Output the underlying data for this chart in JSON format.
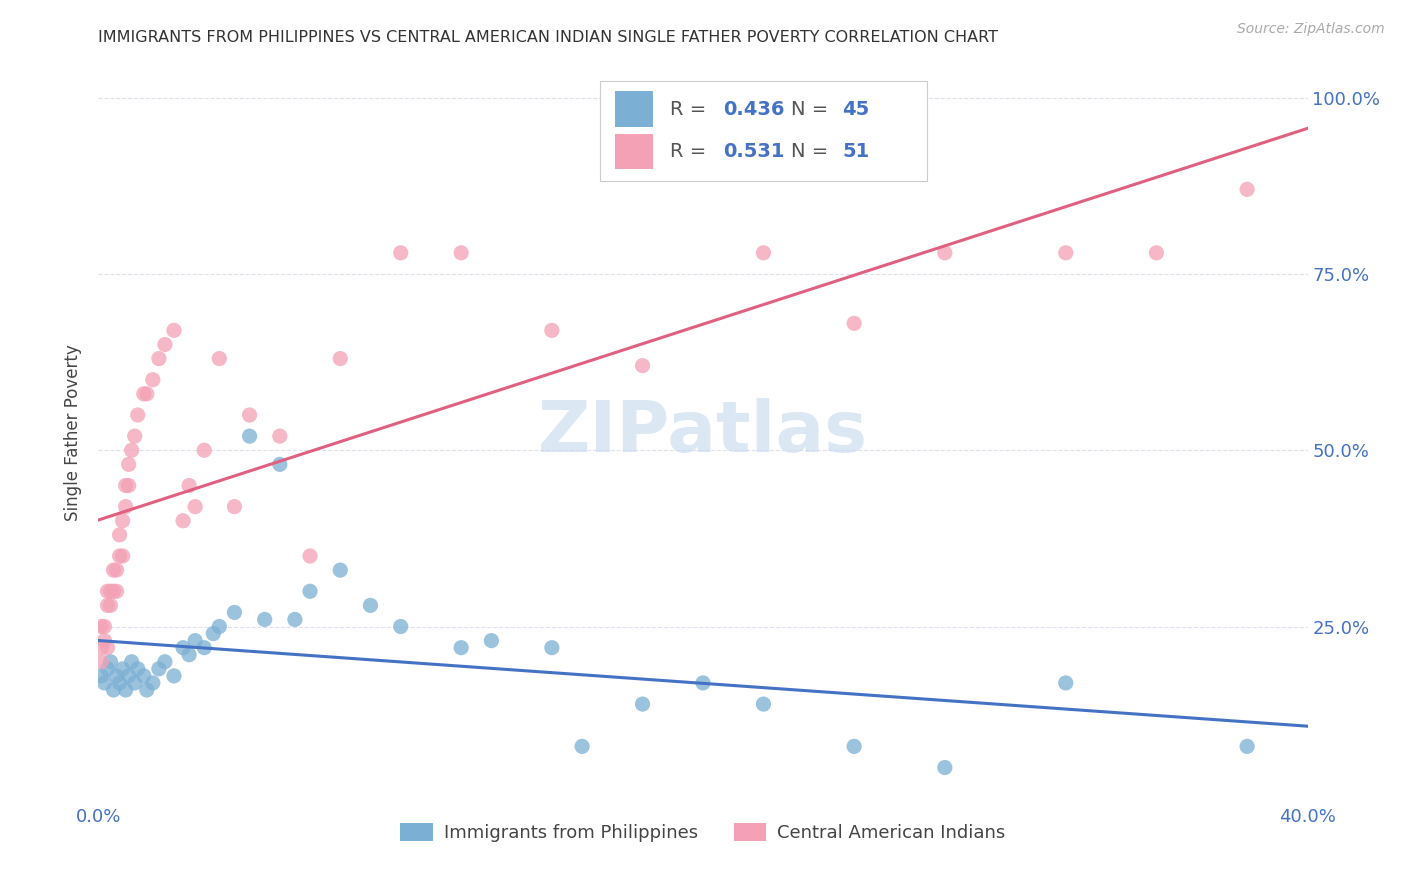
{
  "title": "IMMIGRANTS FROM PHILIPPINES VS CENTRAL AMERICAN INDIAN SINGLE FATHER POVERTY CORRELATION CHART",
  "source": "Source: ZipAtlas.com",
  "ylabel": "Single Father Poverty",
  "blue_R": 0.436,
  "blue_N": 45,
  "pink_R": 0.531,
  "pink_N": 51,
  "blue_color": "#7bafd4",
  "pink_color": "#f4a0b5",
  "blue_line_color": "#4472c4",
  "pink_line_color": "#e06080",
  "legend_label_blue": "Immigrants from Philippines",
  "legend_label_pink": "Central American Indians",
  "watermark": "ZIPatlas",
  "blue_scatter_x": [
    0.001,
    0.002,
    0.003,
    0.004,
    0.005,
    0.006,
    0.007,
    0.008,
    0.009,
    0.01,
    0.011,
    0.012,
    0.013,
    0.015,
    0.016,
    0.018,
    0.02,
    0.022,
    0.025,
    0.028,
    0.03,
    0.032,
    0.035,
    0.038,
    0.04,
    0.045,
    0.05,
    0.055,
    0.06,
    0.065,
    0.07,
    0.08,
    0.09,
    0.1,
    0.12,
    0.13,
    0.15,
    0.16,
    0.18,
    0.2,
    0.22,
    0.25,
    0.28,
    0.32,
    0.38
  ],
  "blue_scatter_y": [
    0.18,
    0.17,
    0.19,
    0.2,
    0.16,
    0.18,
    0.17,
    0.19,
    0.16,
    0.18,
    0.2,
    0.17,
    0.19,
    0.18,
    0.16,
    0.17,
    0.19,
    0.2,
    0.18,
    0.22,
    0.21,
    0.23,
    0.22,
    0.24,
    0.25,
    0.27,
    0.52,
    0.26,
    0.48,
    0.26,
    0.3,
    0.33,
    0.28,
    0.25,
    0.22,
    0.23,
    0.22,
    0.08,
    0.14,
    0.17,
    0.14,
    0.08,
    0.05,
    0.17,
    0.08
  ],
  "pink_scatter_x": [
    0.001,
    0.001,
    0.001,
    0.002,
    0.002,
    0.003,
    0.003,
    0.003,
    0.004,
    0.004,
    0.005,
    0.005,
    0.006,
    0.006,
    0.007,
    0.007,
    0.008,
    0.008,
    0.009,
    0.009,
    0.01,
    0.01,
    0.011,
    0.012,
    0.013,
    0.015,
    0.016,
    0.018,
    0.02,
    0.022,
    0.025,
    0.028,
    0.03,
    0.032,
    0.035,
    0.04,
    0.045,
    0.05,
    0.06,
    0.07,
    0.08,
    0.1,
    0.12,
    0.15,
    0.18,
    0.22,
    0.25,
    0.28,
    0.32,
    0.35,
    0.38
  ],
  "pink_scatter_y": [
    0.2,
    0.22,
    0.25,
    0.23,
    0.25,
    0.22,
    0.28,
    0.3,
    0.28,
    0.3,
    0.3,
    0.33,
    0.3,
    0.33,
    0.35,
    0.38,
    0.35,
    0.4,
    0.42,
    0.45,
    0.45,
    0.48,
    0.5,
    0.52,
    0.55,
    0.58,
    0.58,
    0.6,
    0.63,
    0.65,
    0.67,
    0.4,
    0.45,
    0.42,
    0.5,
    0.63,
    0.42,
    0.55,
    0.52,
    0.35,
    0.63,
    0.78,
    0.78,
    0.67,
    0.62,
    0.78,
    0.68,
    0.78,
    0.78,
    0.78,
    0.87
  ],
  "xlim": [
    0.0,
    0.4
  ],
  "ylim": [
    0.0,
    1.05
  ],
  "background_color": "#ffffff",
  "grid_color": "#e0e0ee"
}
